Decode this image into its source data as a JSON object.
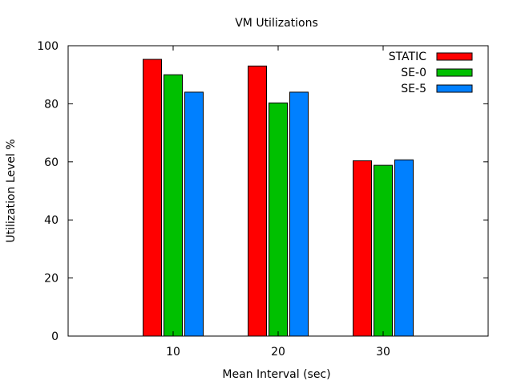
{
  "chart_data": {
    "type": "bar",
    "title": "VM Utilizations",
    "xlabel": "Mean Interval (sec)",
    "ylabel": "Utilization Level %",
    "categories": [
      "10",
      "20",
      "30"
    ],
    "xlim": [
      0,
      40
    ],
    "x_positions": [
      10,
      20,
      30
    ],
    "ylim": [
      0,
      100
    ],
    "yticks": [
      0,
      20,
      40,
      60,
      80,
      100
    ],
    "grid": false,
    "legend_position": "top-right",
    "series": [
      {
        "name": "STATIC",
        "color": "#ff0000",
        "values": [
          95.3,
          93.0,
          60.4
        ]
      },
      {
        "name": "SE-0",
        "color": "#00c000",
        "values": [
          90.0,
          80.3,
          58.8
        ]
      },
      {
        "name": "SE-5",
        "color": "#0080ff",
        "values": [
          84.0,
          84.0,
          60.7
        ]
      }
    ]
  }
}
